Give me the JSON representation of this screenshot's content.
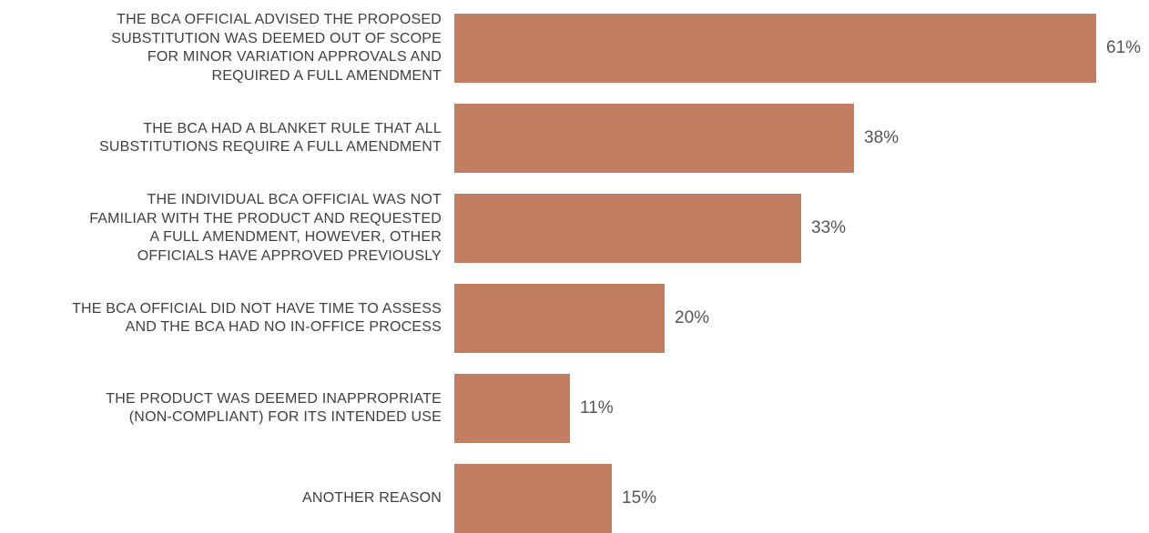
{
  "chart_data": {
    "type": "bar",
    "orientation": "horizontal",
    "categories": [
      "THE BCA OFFICIAL ADVISED THE PROPOSED SUBSTITUTION WAS DEEMED OUT OF SCOPE FOR MINOR VARIATION APPROVALS AND REQUIRED A FULL AMENDMENT",
      "THE BCA HAD A BLANKET RULE THAT ALL SUBSTITUTIONS REQUIRE A FULL AMENDMENT",
      "THE INDIVIDUAL BCA OFFICIAL WAS NOT FAMILIAR WITH THE PRODUCT AND REQUESTED A FULL AMENDMENT, HOWEVER, OTHER OFFICIALS HAVE APPROVED PREVIOUSLY",
      "THE BCA OFFICIAL DID NOT HAVE TIME TO ASSESS AND THE BCA HAD NO IN-OFFICE PROCESS",
      "THE PRODUCT WAS DEEMED INAPPROPRIATE (NON-COMPLIANT) FOR ITS INTENDED USE",
      "ANOTHER REASON"
    ],
    "values": [
      61,
      38,
      33,
      20,
      11,
      15
    ],
    "value_labels": [
      "61%",
      "38%",
      "33%",
      "20%",
      "11%",
      "15%"
    ],
    "title": "",
    "xlabel": "",
    "ylabel": "",
    "xlim": [
      0,
      61
    ],
    "grid": false,
    "legend": "none",
    "bar_color": "#c17e60"
  }
}
